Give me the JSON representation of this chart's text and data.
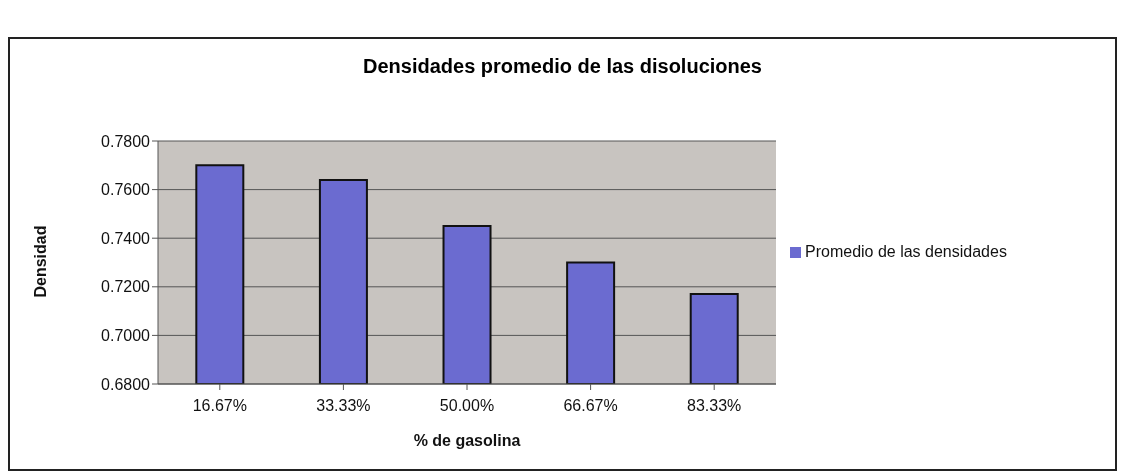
{
  "chart_data": {
    "type": "bar",
    "title": "Densidades promedio de las disoluciones",
    "xlabel": "% de gasolina",
    "ylabel": "Densidad",
    "categories": [
      "16.67%",
      "33.33%",
      "50.00%",
      "66.67%",
      "83.33%"
    ],
    "series": [
      {
        "name": "Promedio de las densidades",
        "color": "#6b6bd0",
        "values": [
          0.77,
          0.764,
          0.745,
          0.73,
          0.717
        ]
      }
    ],
    "ylim": [
      0.68,
      0.78
    ],
    "yticks": [
      {
        "value": 0.68,
        "label": "0.6800"
      },
      {
        "value": 0.7,
        "label": "0.7000"
      },
      {
        "value": 0.72,
        "label": "0.7200"
      },
      {
        "value": 0.74,
        "label": "0.7400"
      },
      {
        "value": 0.76,
        "label": "0.7600"
      },
      {
        "value": 0.78,
        "label": "0.7800"
      }
    ],
    "grid": "y",
    "legend": "right"
  }
}
